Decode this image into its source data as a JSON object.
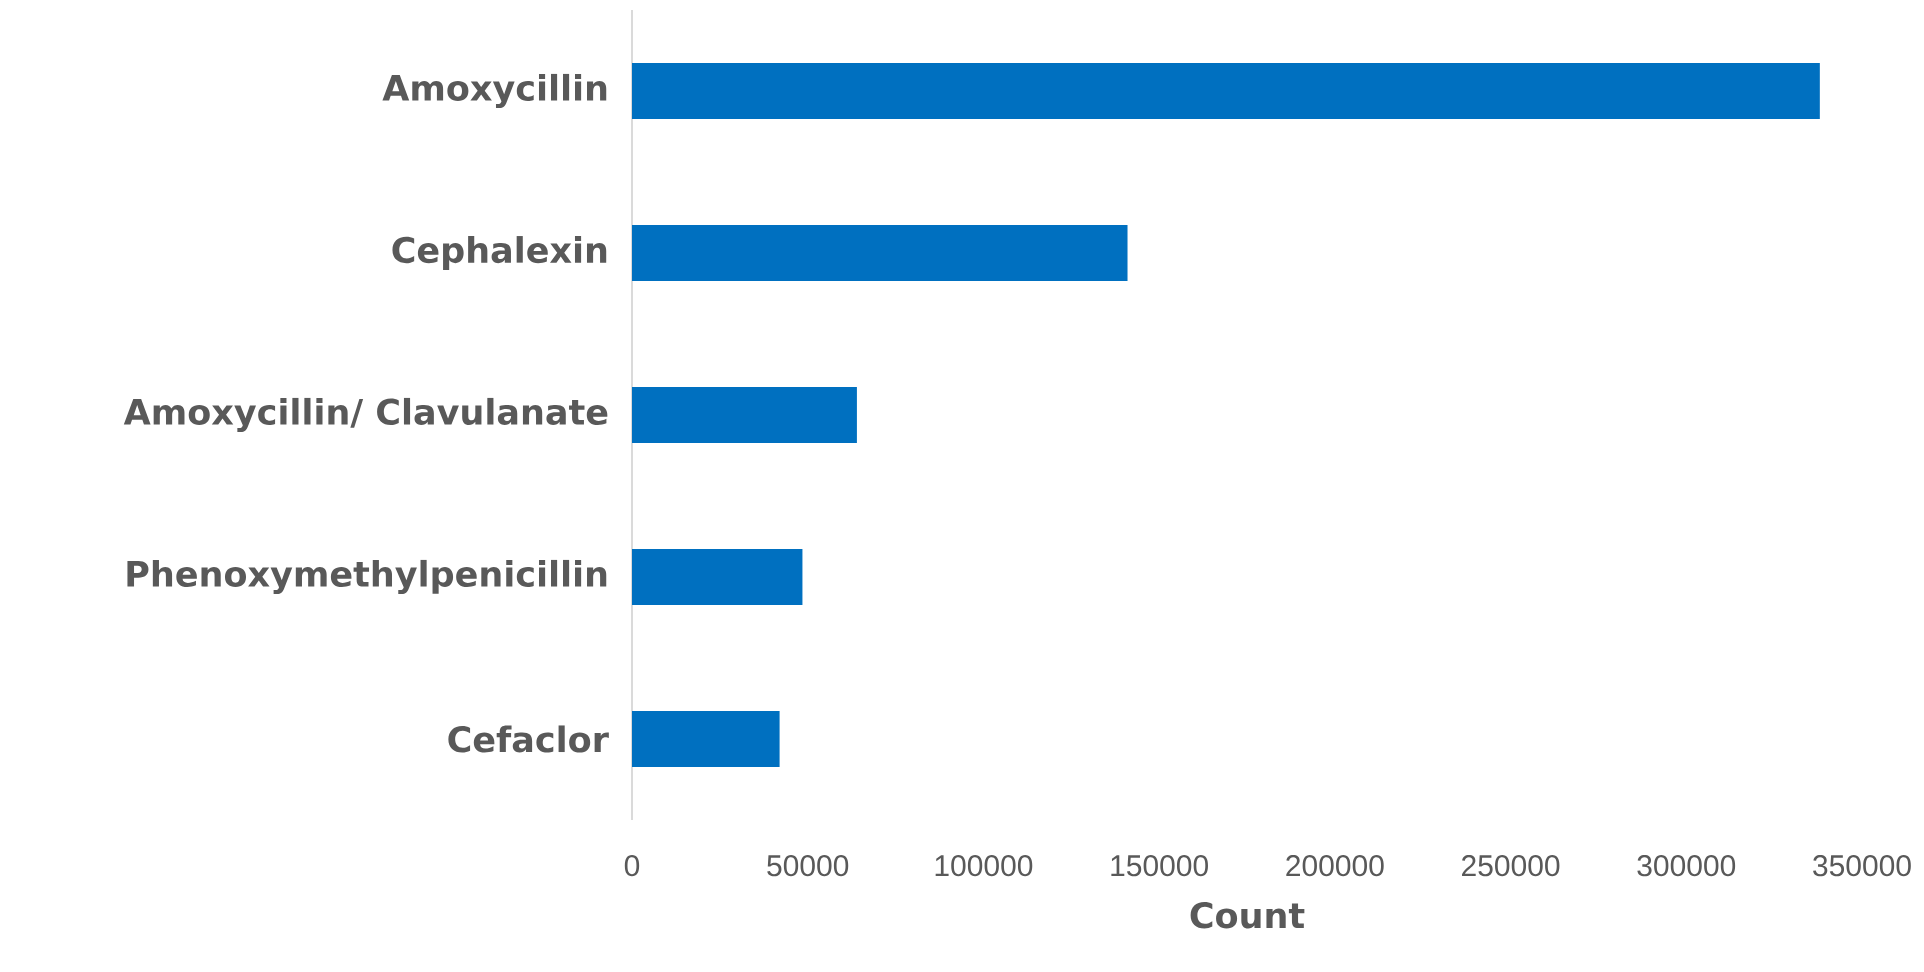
{
  "chart_data": {
    "type": "bar",
    "orientation": "horizontal",
    "xlabel": "Count",
    "categories": [
      "Amoxycillin",
      "Cephalexin",
      "Amoxycillin/ Clavulanate",
      "Phenoxymethylpenicillin",
      "Cefaclor"
    ],
    "values": [
      338000,
      141000,
      64000,
      48500,
      42000
    ],
    "color": "#0070c0",
    "xlim": [
      0,
      350000
    ],
    "xticks": [
      0,
      50000,
      100000,
      150000,
      200000,
      250000,
      300000,
      350000
    ]
  }
}
